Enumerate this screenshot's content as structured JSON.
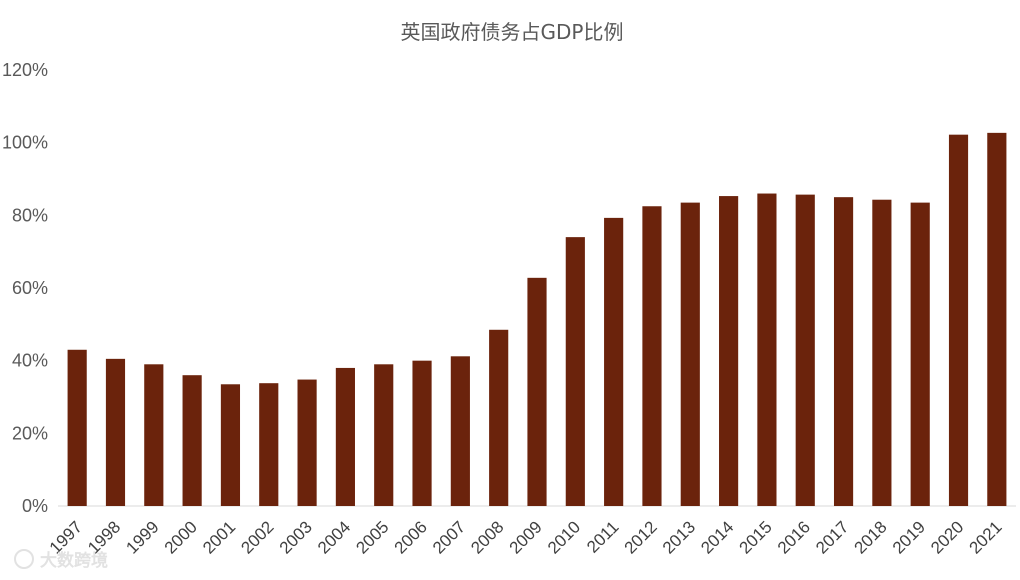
{
  "chart_data": {
    "type": "bar",
    "title": "英国政府债务占GDP比例",
    "xlabel": "",
    "ylabel": "",
    "categories": [
      "1997",
      "1998",
      "1999",
      "2000",
      "2001",
      "2002",
      "2003",
      "2004",
      "2005",
      "2006",
      "2007",
      "2008",
      "2009",
      "2010",
      "2011",
      "2012",
      "2013",
      "2014",
      "2015",
      "2016",
      "2017",
      "2018",
      "2019",
      "2020",
      "2021"
    ],
    "series": [
      {
        "values": [
          43,
          40.5,
          39,
          36,
          33.5,
          33.8,
          34.8,
          38,
          39,
          40,
          41.2,
          48.5,
          62.8,
          74,
          79.3,
          82.5,
          83.5,
          85.3,
          86,
          85.7,
          85,
          84.3,
          83.5,
          102.2,
          102.7
        ]
      }
    ],
    "ylim": [
      0,
      120
    ],
    "yticks": [
      "0%",
      "20%",
      "40%",
      "60%",
      "80%",
      "100%",
      "120%"
    ],
    "grid": false,
    "legend": "none",
    "bar_color": "#6b230c"
  },
  "watermark": "大数跨境"
}
